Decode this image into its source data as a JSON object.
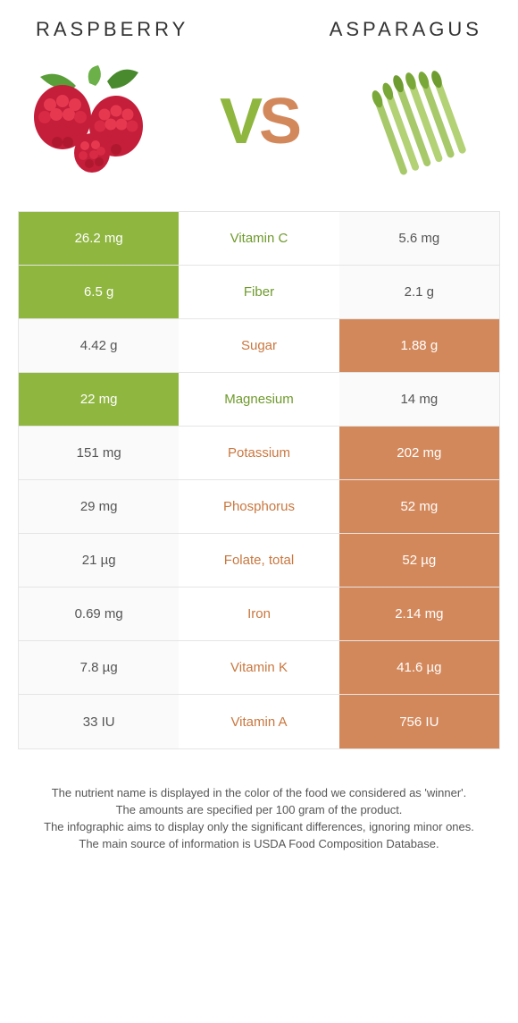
{
  "header": {
    "left_title": "Raspberry",
    "right_title": "Asparagus"
  },
  "vs": {
    "v": "V",
    "s": "S"
  },
  "colors": {
    "left_winner_bg": "#8fb63f",
    "right_winner_bg": "#d3885b",
    "left_text": "#6f9a2d",
    "right_text": "#c9773f",
    "row_border": "#e5e5e5",
    "neutral_bg": "#fafafa",
    "neutral_text": "#555555"
  },
  "rows": [
    {
      "label": "Vitamin C",
      "left": "26.2 mg",
      "right": "5.6 mg",
      "winner": "left"
    },
    {
      "label": "Fiber",
      "left": "6.5 g",
      "right": "2.1 g",
      "winner": "left"
    },
    {
      "label": "Sugar",
      "left": "4.42 g",
      "right": "1.88 g",
      "winner": "right"
    },
    {
      "label": "Magnesium",
      "left": "22 mg",
      "right": "14 mg",
      "winner": "left"
    },
    {
      "label": "Potassium",
      "left": "151 mg",
      "right": "202 mg",
      "winner": "right"
    },
    {
      "label": "Phosphorus",
      "left": "29 mg",
      "right": "52 mg",
      "winner": "right"
    },
    {
      "label": "Folate, total",
      "left": "21 µg",
      "right": "52 µg",
      "winner": "right"
    },
    {
      "label": "Iron",
      "left": "0.69 mg",
      "right": "2.14 mg",
      "winner": "right"
    },
    {
      "label": "Vitamin K",
      "left": "7.8 µg",
      "right": "41.6 µg",
      "winner": "right"
    },
    {
      "label": "Vitamin A",
      "left": "33 IU",
      "right": "756 IU",
      "winner": "right"
    }
  ],
  "footer": {
    "line1": "The nutrient name is displayed in the color of the food we considered as 'winner'.",
    "line2": "The amounts are specified per 100 gram of the product.",
    "line3": "The infographic aims to display only the significant differences, ignoring minor ones.",
    "line4": "The main source of information is USDA Food Composition Database."
  }
}
